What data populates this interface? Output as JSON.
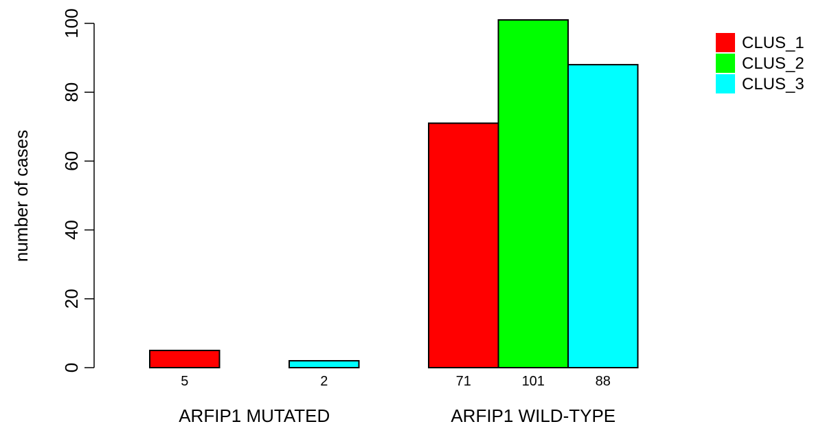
{
  "chart_data": {
    "type": "bar",
    "title": "",
    "ylabel": "number of cases",
    "xlabel": "",
    "ylim": [
      0,
      100
    ],
    "yticks": [
      0,
      20,
      40,
      60,
      80,
      100
    ],
    "categories": [
      "ARFIP1 MUTATED",
      "ARFIP1 WILD-TYPE"
    ],
    "series": [
      {
        "name": "CLUS_1",
        "color": "#ff0000",
        "values": [
          5,
          71
        ]
      },
      {
        "name": "CLUS_2",
        "color": "#00ff00",
        "values": [
          0,
          101
        ]
      },
      {
        "name": "CLUS_3",
        "color": "#00ffff",
        "values": [
          2,
          88
        ]
      }
    ],
    "bar_labels": [
      [
        "5",
        "",
        "2"
      ],
      [
        "71",
        "101",
        "88"
      ]
    ],
    "legend_position": "top-right",
    "grid": false
  }
}
